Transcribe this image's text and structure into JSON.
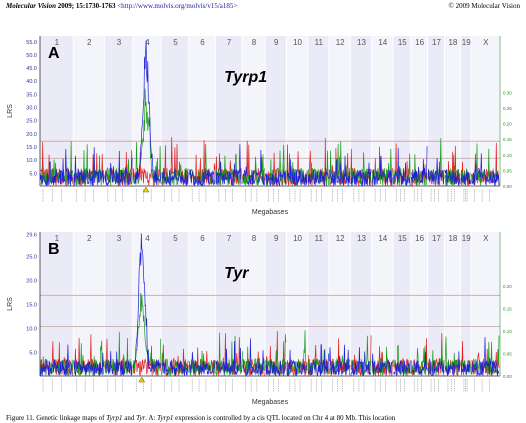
{
  "header": {
    "journal": "Molecular Vision",
    "citation": "2009; 15:1730-1763",
    "url": "<http://www.molvis.org/molvis/v15/a185>",
    "copyright": "© 2009 Molecular Vision"
  },
  "chromosomes": [
    "1",
    "2",
    "3",
    "4",
    "5",
    "6",
    "7",
    "8",
    "9",
    "10",
    "11",
    "12",
    "13",
    "14",
    "15",
    "16",
    "17",
    "18",
    "19",
    "X"
  ],
  "chart_data": [
    {
      "type": "line",
      "panel_letter": "A",
      "gene_label": "Tyrp1",
      "ylabel": "LRS",
      "xlabel": "Megabases",
      "y_ticks": [
        "5.0",
        "10.0",
        "15.0",
        "20.0",
        "25.0",
        "30.0",
        "35.0",
        "40.0",
        "45.0",
        "50.0",
        "55.0"
      ],
      "ylim": [
        0,
        57
      ],
      "right_ticks": [
        "0.00",
        "0.05",
        "0.10",
        "0.15",
        "0.20",
        "0.25",
        "0.30"
      ],
      "thresholds": {
        "suggestive": 10.5,
        "significant": 17.0
      },
      "peak": {
        "chromosome": "4",
        "position": 0.45,
        "lrs": 56.0
      },
      "series": [
        {
          "color": "#1f1fd6",
          "role": "LRS"
        },
        {
          "color": "#e02020",
          "role": "additive effect"
        },
        {
          "color": "#1a9a1a",
          "role": "additive effect"
        }
      ]
    },
    {
      "type": "line",
      "panel_letter": "B",
      "gene_label": "Tyr",
      "ylabel": "LRS",
      "xlabel": "Megabases",
      "y_ticks": [
        "5.0",
        "10.0",
        "15.0",
        "20.0",
        "25.0",
        "29.6"
      ],
      "ylim": [
        0,
        30
      ],
      "right_ticks": [
        "0.00",
        "0.05",
        "0.10",
        "0.15",
        "0.20"
      ],
      "thresholds": {
        "suggestive": 10.3,
        "significant": 16.8
      },
      "peak": {
        "chromosome": "4",
        "position": 0.3,
        "lrs": 29.6
      },
      "series": [
        {
          "color": "#1f1fd6",
          "role": "LRS"
        },
        {
          "color": "#e02020",
          "role": "additive effect"
        },
        {
          "color": "#1a9a1a",
          "role": "additive effect"
        }
      ]
    }
  ],
  "caption": {
    "prefix": "Figure 11. Genetic linkage maps of ",
    "gene1": "Tyrp1",
    "mid1": " and ",
    "gene2": "Tyr",
    "mid2": ". A: ",
    "gene3": "Tyrp1",
    "rest": " expression is controlled by a cis QTL located on Chr 4 at 80 Mb. This location"
  }
}
